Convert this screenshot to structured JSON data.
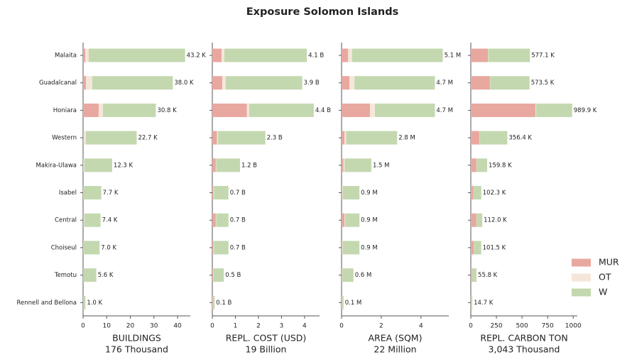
{
  "title": "Exposure Solomon Islands",
  "chart_data": [
    {
      "type": "bar",
      "orientation": "horizontal",
      "categories": [
        "Malaita",
        "Guadalcanal",
        "Honiara",
        "Western",
        "Makira-Ulawa",
        "Isabel",
        "Central",
        "Choiseul",
        "Temotu",
        "Rennell and Bellona"
      ],
      "series": [
        {
          "name": "MUR",
          "color": "#e8a8a0",
          "values": [
            0.9,
            1.2,
            6.6,
            0.3,
            0.2,
            0.1,
            0.3,
            0.1,
            0.1,
            0.1
          ]
        },
        {
          "name": "OT",
          "color": "#f5e6da",
          "values": [
            1.5,
            2.7,
            1.8,
            0.9,
            0.3,
            0.2,
            0.2,
            0.2,
            0.1,
            0.1
          ]
        },
        {
          "name": "W",
          "color": "#c4d8b0",
          "values": [
            40.8,
            34.1,
            22.4,
            21.5,
            11.8,
            7.4,
            6.9,
            6.7,
            5.4,
            0.8
          ]
        }
      ],
      "total_labels": [
        "43.2 K",
        "38.0 K",
        "30.8 K",
        "22.7 K",
        "12.3 K",
        "7.7 K",
        "7.4 K",
        "7.0 K",
        "5.6 K",
        "1.0 K"
      ],
      "xlim": [
        0,
        45.4
      ],
      "xticks": [
        0,
        10,
        20,
        30,
        40
      ],
      "xlabel": "BUILDINGS",
      "xlabel_sub": "176 Thousand"
    },
    {
      "type": "bar",
      "orientation": "horizontal",
      "series": [
        {
          "color": "#e8a8a0",
          "values": [
            0.4,
            0.43,
            1.5,
            0.2,
            0.15,
            0.05,
            0.15,
            0.05,
            0.03,
            0.02
          ]
        },
        {
          "color": "#f5e6da",
          "values": [
            0.12,
            0.15,
            0.1,
            0.05,
            0.02,
            0.02,
            0.02,
            0.02,
            0.01,
            0.01
          ]
        },
        {
          "color": "#c4d8b0",
          "values": [
            3.58,
            3.32,
            2.8,
            2.05,
            1.03,
            0.63,
            0.53,
            0.63,
            0.46,
            0.07
          ]
        }
      ],
      "total_labels": [
        "4.1 B",
        "3.9 B",
        "4.4 B",
        "2.3 B",
        "1.2 B",
        "0.7 B",
        "0.7 B",
        "0.7 B",
        "0.5 B",
        "0.1 B"
      ],
      "xlim": [
        0,
        4.65
      ],
      "xticks": [
        0,
        1,
        2,
        3,
        4
      ],
      "xlabel": "REPL. COST (USD)",
      "xlabel_sub": "19 Billion"
    },
    {
      "type": "bar",
      "orientation": "horizontal",
      "series": [
        {
          "color": "#e8a8a0",
          "values": [
            0.33,
            0.4,
            1.43,
            0.15,
            0.1,
            0.03,
            0.15,
            0.03,
            0.02,
            0.02
          ]
        },
        {
          "color": "#f5e6da",
          "values": [
            0.2,
            0.25,
            0.25,
            0.08,
            0.05,
            0.02,
            0.02,
            0.02,
            0.01,
            0.01
          ]
        },
        {
          "color": "#c4d8b0",
          "values": [
            4.57,
            4.05,
            3.02,
            2.57,
            1.35,
            0.85,
            0.73,
            0.85,
            0.57,
            0.07
          ]
        }
      ],
      "total_labels": [
        "5.1 M",
        "4.7 M",
        "4.7 M",
        "2.8 M",
        "1.5 M",
        "0.9 M",
        "0.9 M",
        "0.9 M",
        "0.6 M",
        "0.1 M"
      ],
      "xlim": [
        0,
        5.4
      ],
      "xticks": [
        0,
        2,
        4
      ],
      "xlabel": "AREA (SQM)",
      "xlabel_sub": "22 Million"
    },
    {
      "type": "bar",
      "orientation": "horizontal",
      "series": [
        {
          "color": "#e8a8a0",
          "values": [
            167,
            187,
            632,
            83,
            55,
            25,
            55,
            30,
            12,
            4
          ]
        },
        {
          "color": "#f5e6da",
          "values": [
            3,
            3,
            5,
            2,
            1,
            1,
            1,
            1,
            1,
            0.5
          ]
        },
        {
          "color": "#c4d8b0",
          "values": [
            407.1,
            383.5,
            352.9,
            271.4,
            103.8,
            76.3,
            56.0,
            70.5,
            42.8,
            10.2
          ]
        }
      ],
      "total_labels": [
        "577.1 K",
        "573.5 K",
        "989.9 K",
        "356.4 K",
        "159.8 K",
        "102.3 K",
        "112.0 K",
        "101.5 K",
        "55.8 K",
        "14.7 K"
      ],
      "xlim": [
        0,
        1040
      ],
      "xticks": [
        0,
        250,
        500,
        750,
        1000
      ],
      "xlabel": "REPL. CARBON TON",
      "xlabel_sub": "3,043 Thousand"
    }
  ]
}
